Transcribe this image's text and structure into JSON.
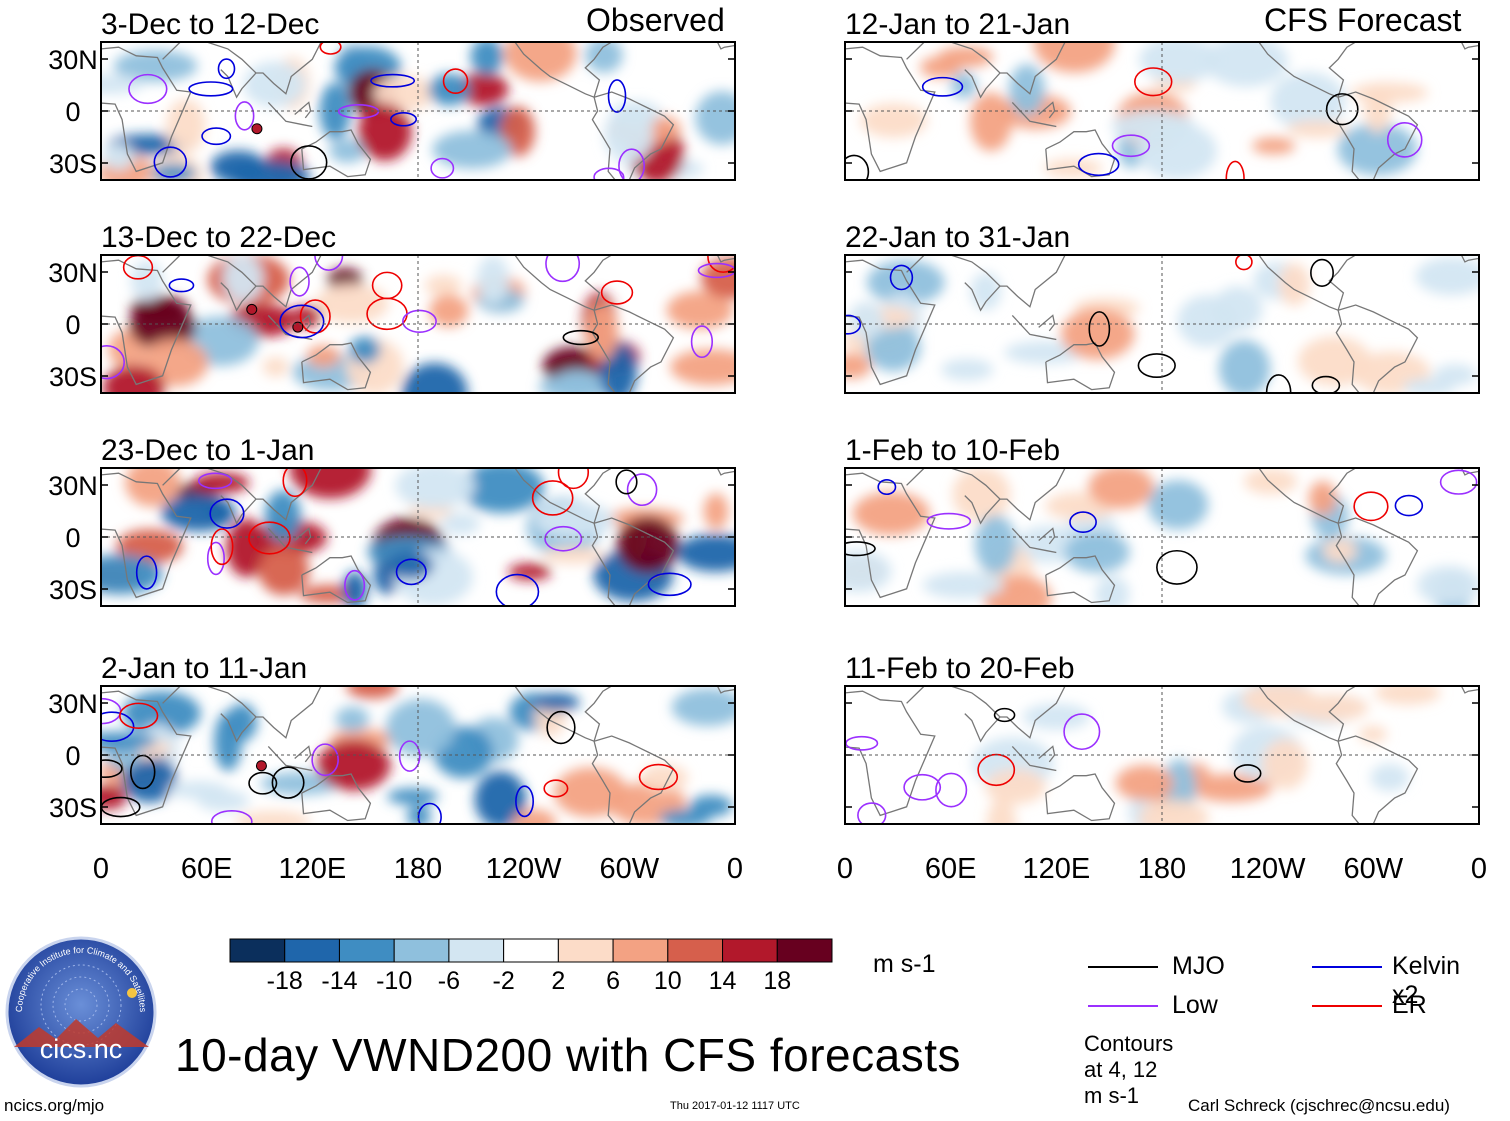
{
  "title": "10-day VWND200 with CFS forecasts",
  "footer": {
    "left": "ncics.org/mjo",
    "center": "Thu 2017-01-12 1117 UTC",
    "right": "Carl Schreck (cjschrec@ncsu.edu)"
  },
  "logo": {
    "text": "cics.nc",
    "ring_text": "Cooperative Institute for Climate and Satellites"
  },
  "legend": {
    "items": [
      {
        "label": "MJO",
        "color": "#000000"
      },
      {
        "label": "Kelvin x2",
        "color": "#0000dd"
      },
      {
        "label": "Low",
        "color": "#9b30ff"
      },
      {
        "label": "ER",
        "color": "#ee0000"
      }
    ],
    "note": "Contours at 4, 12 m s-1"
  },
  "colorbar": {
    "units": "m s-1",
    "ticks": [
      "-18",
      "-14",
      "-10",
      "-6",
      "-2",
      "2",
      "6",
      "10",
      "14",
      "18"
    ],
    "colors": [
      "#0b2f5c",
      "#1f66ab",
      "#3f8dc2",
      "#8fc0dd",
      "#d3e6f2",
      "#ffffff",
      "#fcdcc8",
      "#f3a283",
      "#d65f4c",
      "#b2182b",
      "#67001f"
    ]
  },
  "chart_data": {
    "type": "heatmap",
    "variable": "VWND200",
    "column_headers": [
      "Observed",
      "CFS Forecast"
    ],
    "y_ticks": [
      "30N",
      "0",
      "30S"
    ],
    "x_ticks": [
      "0",
      "60E",
      "120E",
      "180",
      "120W",
      "60W",
      "0"
    ],
    "panels_observed": [
      {
        "label": "3-Dec to 12-Dec",
        "tc_markers": 1
      },
      {
        "label": "13-Dec to 22-Dec",
        "tc_markers": 2
      },
      {
        "label": "23-Dec to 1-Jan",
        "tc_markers": 0
      },
      {
        "label": "2-Jan to 11-Jan",
        "tc_markers": 1
      }
    ],
    "panels_forecast": [
      {
        "label": "12-Jan to 21-Jan"
      },
      {
        "label": "22-Jan to 31-Jan"
      },
      {
        "label": "1-Feb to 10-Feb"
      },
      {
        "label": "11-Feb to 20-Feb"
      }
    ]
  }
}
